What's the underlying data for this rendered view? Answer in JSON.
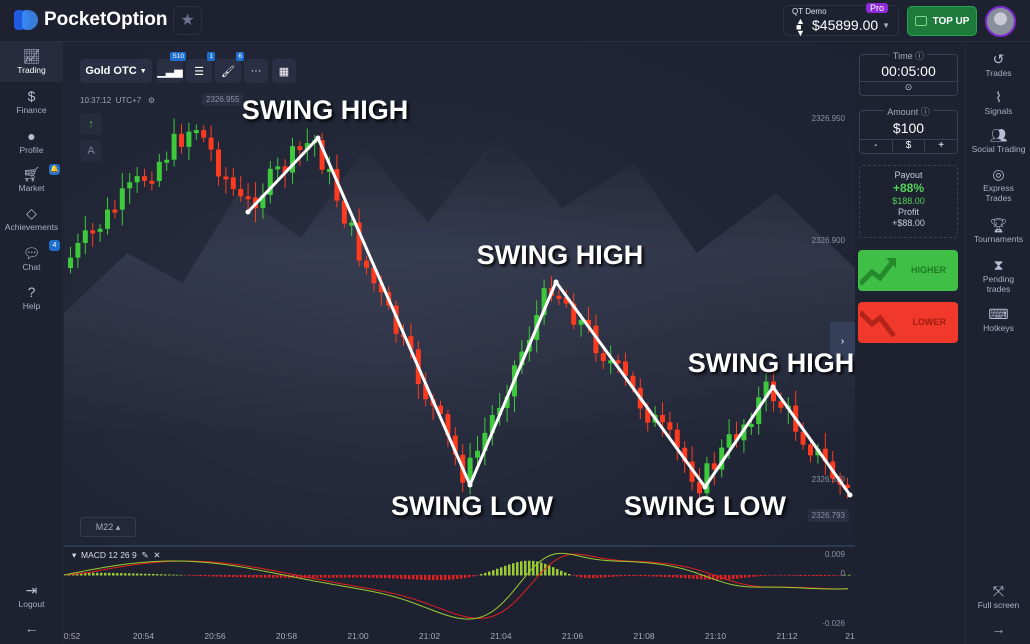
{
  "header": {
    "brand": "PocketOption",
    "account_label": "QT Demo",
    "account_tier": "Pro",
    "balance": "$45899.00",
    "topup_label": "TOP UP"
  },
  "left_nav": [
    {
      "label": "Trading",
      "icon": "chart-line-icon"
    },
    {
      "label": "Finance",
      "icon": "dollar-icon"
    },
    {
      "label": "Profile",
      "icon": "user-icon"
    },
    {
      "label": "Market",
      "icon": "cart-icon",
      "badge": "🔔"
    },
    {
      "label": "Achievements",
      "icon": "diamond-icon"
    },
    {
      "label": "Chat",
      "icon": "chat-icon",
      "badge": "4"
    },
    {
      "label": "Help",
      "icon": "help-icon"
    }
  ],
  "left_bottom": {
    "logout": "Logout"
  },
  "toolbar": {
    "asset": "Gold OTC",
    "timeframe_badge": "S10",
    "indicators_badge": "1",
    "drawings_badge": "6",
    "more": "···"
  },
  "chart": {
    "clock": "10:37:12",
    "timezone": "UTC+7",
    "price_top": "2326.955",
    "price_labels": [
      "2326.950",
      "2326.900"
    ],
    "price_current": "2326.793",
    "price_mid": "2326.820",
    "timeframe": "M22",
    "annotations": {
      "high1": "SWING HIGH",
      "high2": "SWING HIGH",
      "high3": "SWING HIGH",
      "low1": "SWING LOW",
      "low2": "SWING LOW"
    },
    "macd": {
      "label": "MACD  12 26 9",
      "max": "0.009",
      "zero": "0",
      "min": "-0.026"
    },
    "time_ticks": [
      "0:52",
      "20:54",
      "20:56",
      "20:58",
      "21:00",
      "21:02",
      "21:04",
      "21:06",
      "21:08",
      "21:10",
      "21:12",
      "21"
    ],
    "colors": {
      "up": "#3ec93c",
      "down": "#ff3b1f",
      "macd_line": "#9acd32",
      "signal_line": "#e02020"
    }
  },
  "trade_panel": {
    "time_label": "Time",
    "time_value": "00:05:00",
    "amount_label": "Amount",
    "amount_value": "$100",
    "minus": "-",
    "currency": "$",
    "plus": "+",
    "payout_label": "Payout",
    "payout_percent": "+88%",
    "payout_amount": "$188.00",
    "profit_label": "Profit",
    "profit_value": "+$88.00",
    "higher": "HIGHER",
    "lower": "LOWER",
    "higher_color": "#3fbf45",
    "lower_color": "#f0392b"
  },
  "right_nav": [
    {
      "label": "Trades"
    },
    {
      "label": "Signals"
    },
    {
      "label": "Social Trading"
    },
    {
      "label": "Express Trades"
    },
    {
      "label": "Tournaments"
    },
    {
      "label": "Pending trades"
    },
    {
      "label": "Hotkeys"
    }
  ],
  "right_bottom": {
    "fullscreen": "Full screen"
  }
}
